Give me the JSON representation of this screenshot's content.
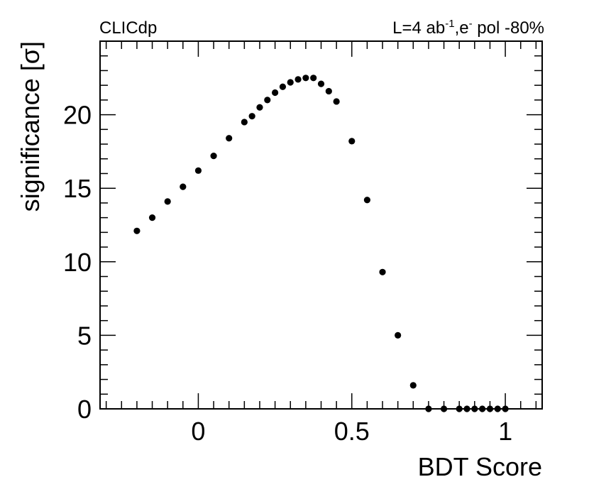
{
  "header": {
    "experiment": "CLICdp",
    "lumi_prefix": "L=4 ab",
    "lumi_exponent": "-1",
    "beam_prefix": ",e",
    "beam_exponent": "-",
    "pol_label": " pol -80%"
  },
  "chart_data": {
    "type": "scatter",
    "title": "",
    "xlabel": "BDT Score",
    "ylabel": "significance [σ]",
    "xlim": [
      -0.32,
      1.12
    ],
    "ylim": [
      0,
      25
    ],
    "x_ticks": [
      0,
      0.5,
      1
    ],
    "x_tick_labels": [
      "0",
      "0.5",
      "1"
    ],
    "y_ticks": [
      0,
      5,
      10,
      15,
      20
    ],
    "y_tick_labels": [
      "0",
      "5",
      "10",
      "15",
      "20"
    ],
    "grid": false,
    "legend": "none",
    "marker_color": "#000000",
    "series": [
      {
        "x": [
          -0.2,
          -0.15,
          -0.1,
          -0.05,
          0,
          0.05,
          0.1,
          0.15,
          0.175,
          0.2,
          0.225,
          0.25,
          0.275,
          0.3,
          0.325,
          0.35,
          0.375,
          0.4,
          0.425,
          0.45,
          0.5,
          0.55,
          0.6,
          0.65,
          0.7,
          0.75,
          0.8,
          0.85,
          0.875,
          0.9,
          0.925,
          0.95,
          0.975,
          1.0
        ],
        "y": [
          12.1,
          13.0,
          14.1,
          15.1,
          16.2,
          17.2,
          18.4,
          19.5,
          19.9,
          20.5,
          21.0,
          21.5,
          21.9,
          22.2,
          22.4,
          22.5,
          22.5,
          22.1,
          21.6,
          20.9,
          18.2,
          14.2,
          9.3,
          5.0,
          1.6,
          0.0,
          0.0,
          0.0,
          0.0,
          0.0,
          0.0,
          0.0,
          0.0,
          0.0
        ]
      }
    ]
  }
}
